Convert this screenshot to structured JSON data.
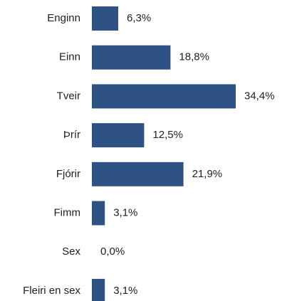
{
  "chart_data": {
    "type": "bar",
    "orientation": "horizontal",
    "categories": [
      "Enginn",
      "Einn",
      "Tveir",
      "Þrír",
      "Fjórir",
      "Fimm",
      "Sex",
      "Fleiri en sex"
    ],
    "values": [
      6.3,
      18.8,
      34.4,
      12.5,
      21.9,
      3.1,
      0.0,
      3.1
    ],
    "value_labels": [
      "6,3%",
      "18,8%",
      "34,4%",
      "12,5%",
      "21,9%",
      "3,1%",
      "0,0%",
      "3,1%"
    ],
    "color": "#2e5283"
  }
}
